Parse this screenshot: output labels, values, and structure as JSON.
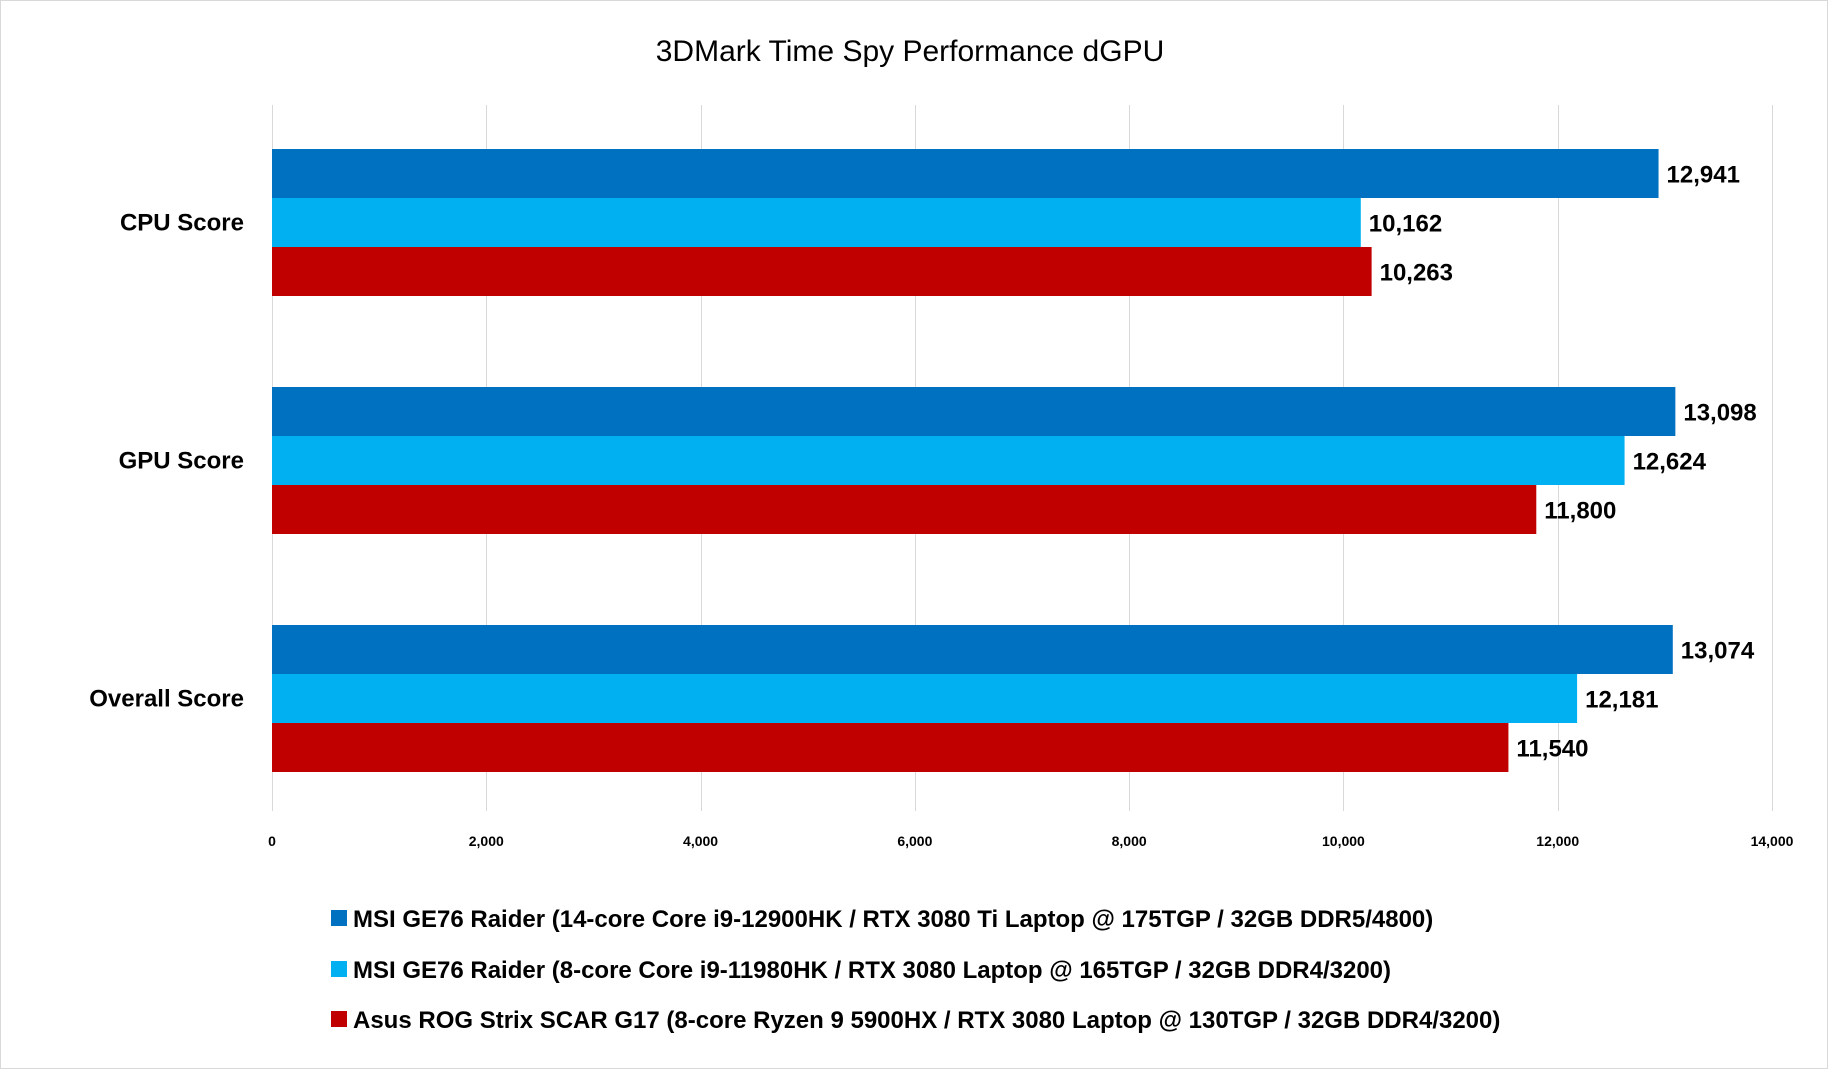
{
  "chart_data": {
    "type": "bar",
    "orientation": "horizontal",
    "title": "3DMark Time Spy Performance dGPU",
    "categories": [
      "CPU Score",
      "GPU Score",
      "Overall Score"
    ],
    "series": [
      {
        "name": "MSI GE76 Raider (14-core Core i9-12900HK / RTX 3080 Ti Laptop @ 175TGP / 32GB DDR5/4800)",
        "color": "#0070c0",
        "values": [
          12941,
          13098,
          13074
        ],
        "labels": [
          "12,941",
          "13,098",
          "13,074"
        ]
      },
      {
        "name": "MSI GE76 Raider (8-core Core i9-11980HK / RTX 3080 Laptop @ 165TGP / 32GB DDR4/3200)",
        "color": "#00b0f0",
        "values": [
          10162,
          12624,
          12181
        ],
        "labels": [
          "10,162",
          "12,624",
          "12,181"
        ]
      },
      {
        "name": "Asus ROG Strix SCAR G17 (8-core Ryzen 9 5900HX / RTX 3080 Laptop @ 130TGP / 32GB DDR4/3200)",
        "color": "#c00000",
        "values": [
          10263,
          11800,
          11540
        ],
        "labels": [
          "10,263",
          "11,800",
          "11,540"
        ]
      }
    ],
    "xlim": [
      0,
      14000
    ],
    "xticks": [
      0,
      2000,
      4000,
      6000,
      8000,
      10000,
      12000,
      14000
    ],
    "xtick_labels": [
      "0",
      "2,000",
      "4,000",
      "6,000",
      "8,000",
      "10,000",
      "12,000",
      "14,000"
    ],
    "grid": true,
    "legend_position": "bottom"
  }
}
